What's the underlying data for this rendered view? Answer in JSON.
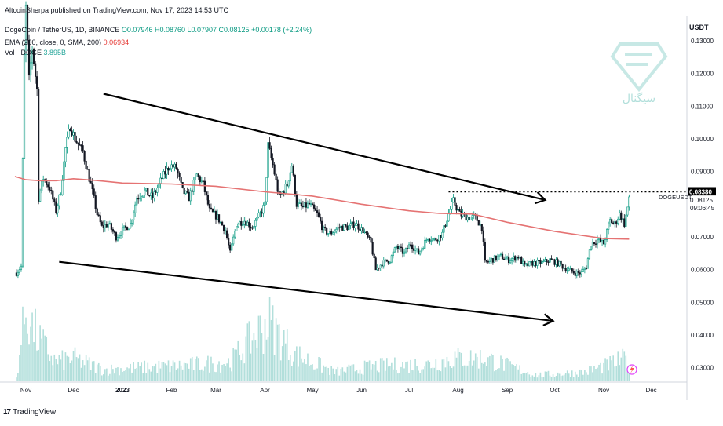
{
  "header": {
    "credit": "AltcoinSherpa published on TradingView.com, Nov 17, 2023 14:53 UTC",
    "symbol_label": "DogeCoin / TetherUS, 1D, BINANCE",
    "ohlc": "O0.07946  H0.08760  L0.07907  C0.08125  +0.00178 (+2.24%)",
    "ema_label": "EMA (200, close, 0, SMA, 200)",
    "ema_value": "0.06934",
    "vol_label": "Vol · DOGE",
    "vol_value": "3.895B"
  },
  "price_axis": {
    "unit": "USDT",
    "ticks": [
      "0.13000",
      "0.12000",
      "0.11000",
      "0.10000",
      "0.09000",
      "0.08000",
      "0.07000",
      "0.06000",
      "0.05000",
      "0.04000",
      "0.03000"
    ],
    "resistance_label": "0.08380",
    "last_price_label": "0.08125",
    "symbol_tag": "DOGEUSDT",
    "countdown": "09:06:45"
  },
  "time_axis": {
    "ticks": [
      "Nov",
      "Dec",
      "2023",
      "Feb",
      "Mar",
      "Apr",
      "May",
      "Jun",
      "Jul",
      "Aug",
      "Sep",
      "Oct",
      "Nov",
      "Dec"
    ]
  },
  "footer": {
    "brand": "TradingView"
  },
  "watermark": {
    "text": "سیگنال"
  },
  "colors": {
    "up": "#089981",
    "down": "#131722",
    "ema": "#e57373",
    "volume": "#b2dfdb",
    "trendline": "#000000",
    "text": "#131722"
  },
  "chart_data": {
    "type": "candlestick",
    "title": "DogeCoin / TetherUS, 1D, BINANCE",
    "x_range": [
      "2022-11-01",
      "2023-12-15"
    ],
    "ylim": [
      0.025,
      0.14
    ],
    "grid": false,
    "price_path": [
      [
        "2022-10-26",
        0.059
      ],
      [
        "2022-10-29",
        0.061
      ],
      [
        "2022-10-31",
        0.125
      ],
      [
        "2022-11-01",
        0.14
      ],
      [
        "2022-11-03",
        0.118
      ],
      [
        "2022-11-05",
        0.128
      ],
      [
        "2022-11-08",
        0.115
      ],
      [
        "2022-11-09",
        0.082
      ],
      [
        "2022-11-12",
        0.088
      ],
      [
        "2022-11-16",
        0.085
      ],
      [
        "2022-11-20",
        0.078
      ],
      [
        "2022-11-23",
        0.084
      ],
      [
        "2022-11-26",
        0.097
      ],
      [
        "2022-11-29",
        0.104
      ],
      [
        "2022-12-02",
        0.1
      ],
      [
        "2022-12-07",
        0.096
      ],
      [
        "2022-12-12",
        0.086
      ],
      [
        "2022-12-16",
        0.077
      ],
      [
        "2022-12-19",
        0.073
      ],
      [
        "2022-12-23",
        0.074
      ],
      [
        "2022-12-28",
        0.07
      ],
      [
        "2023-01-01",
        0.072
      ],
      [
        "2023-01-06",
        0.074
      ],
      [
        "2023-01-10",
        0.082
      ],
      [
        "2023-01-15",
        0.084
      ],
      [
        "2023-01-20",
        0.082
      ],
      [
        "2023-01-26",
        0.088
      ],
      [
        "2023-01-31",
        0.092
      ],
      [
        "2023-02-04",
        0.091
      ],
      [
        "2023-02-08",
        0.084
      ],
      [
        "2023-02-12",
        0.082
      ],
      [
        "2023-02-17",
        0.089
      ],
      [
        "2023-02-21",
        0.086
      ],
      [
        "2023-02-25",
        0.078
      ],
      [
        "2023-03-02",
        0.076
      ],
      [
        "2023-03-07",
        0.072
      ],
      [
        "2023-03-10",
        0.065
      ],
      [
        "2023-03-14",
        0.074
      ],
      [
        "2023-03-19",
        0.075
      ],
      [
        "2023-03-24",
        0.073
      ],
      [
        "2023-03-29",
        0.077
      ],
      [
        "2023-04-01",
        0.08
      ],
      [
        "2023-04-03",
        0.098
      ],
      [
        "2023-04-06",
        0.092
      ],
      [
        "2023-04-10",
        0.082
      ],
      [
        "2023-04-15",
        0.086
      ],
      [
        "2023-04-18",
        0.092
      ],
      [
        "2023-04-21",
        0.08
      ],
      [
        "2023-04-25",
        0.079
      ],
      [
        "2023-04-29",
        0.08
      ],
      [
        "2023-05-04",
        0.077
      ],
      [
        "2023-05-08",
        0.072
      ],
      [
        "2023-05-12",
        0.071
      ],
      [
        "2023-05-18",
        0.073
      ],
      [
        "2023-05-23",
        0.073
      ],
      [
        "2023-05-28",
        0.074
      ],
      [
        "2023-06-02",
        0.072
      ],
      [
        "2023-06-07",
        0.068
      ],
      [
        "2023-06-10",
        0.06
      ],
      [
        "2023-06-14",
        0.062
      ],
      [
        "2023-06-19",
        0.063
      ],
      [
        "2023-06-23",
        0.067
      ],
      [
        "2023-06-28",
        0.065
      ],
      [
        "2023-07-02",
        0.068
      ],
      [
        "2023-07-07",
        0.065
      ],
      [
        "2023-07-13",
        0.07
      ],
      [
        "2023-07-17",
        0.069
      ],
      [
        "2023-07-22",
        0.071
      ],
      [
        "2023-07-26",
        0.077
      ],
      [
        "2023-07-29",
        0.081
      ],
      [
        "2023-08-02",
        0.077
      ],
      [
        "2023-08-07",
        0.076
      ],
      [
        "2023-08-12",
        0.076
      ],
      [
        "2023-08-16",
        0.073
      ],
      [
        "2023-08-18",
        0.062
      ],
      [
        "2023-08-22",
        0.063
      ],
      [
        "2023-08-28",
        0.064
      ],
      [
        "2023-09-02",
        0.063
      ],
      [
        "2023-09-08",
        0.064
      ],
      [
        "2023-09-12",
        0.061
      ],
      [
        "2023-09-17",
        0.062
      ],
      [
        "2023-09-23",
        0.062
      ],
      [
        "2023-09-28",
        0.063
      ],
      [
        "2023-10-03",
        0.062
      ],
      [
        "2023-10-09",
        0.06
      ],
      [
        "2023-10-14",
        0.059
      ],
      [
        "2023-10-18",
        0.059
      ],
      [
        "2023-10-21",
        0.061
      ],
      [
        "2023-10-24",
        0.068
      ],
      [
        "2023-10-28",
        0.069
      ],
      [
        "2023-11-01",
        0.068
      ],
      [
        "2023-11-05",
        0.075
      ],
      [
        "2023-11-08",
        0.074
      ],
      [
        "2023-11-11",
        0.077
      ],
      [
        "2023-11-14",
        0.074
      ],
      [
        "2023-11-16",
        0.079
      ],
      [
        "2023-11-17",
        0.08125
      ]
    ],
    "ema200_path": [
      [
        "2022-10-25",
        0.0885
      ],
      [
        "2022-11-01",
        0.0875
      ],
      [
        "2022-11-10",
        0.0872
      ],
      [
        "2022-11-20",
        0.0872
      ],
      [
        "2022-12-01",
        0.0878
      ],
      [
        "2022-12-15",
        0.0873
      ],
      [
        "2023-01-01",
        0.0865
      ],
      [
        "2023-02-01",
        0.0862
      ],
      [
        "2023-03-01",
        0.0855
      ],
      [
        "2023-04-01",
        0.0838
      ],
      [
        "2023-05-01",
        0.0825
      ],
      [
        "2023-06-01",
        0.08
      ],
      [
        "2023-07-01",
        0.078
      ],
      [
        "2023-07-20",
        0.0772
      ],
      [
        "2023-08-10",
        0.077
      ],
      [
        "2023-09-01",
        0.0745
      ],
      [
        "2023-10-01",
        0.0717
      ],
      [
        "2023-11-01",
        0.0695
      ],
      [
        "2023-11-17",
        0.06934
      ]
    ],
    "volume_profile_relative": [
      [
        "2022-10-26",
        0.05
      ],
      [
        "2022-11-01",
        0.95
      ],
      [
        "2022-11-05",
        0.7
      ],
      [
        "2022-11-09",
        0.55
      ],
      [
        "2022-11-20",
        0.25
      ],
      [
        "2022-12-01",
        0.3
      ],
      [
        "2022-12-20",
        0.15
      ],
      [
        "2023-01-15",
        0.18
      ],
      [
        "2023-02-05",
        0.2
      ],
      [
        "2023-03-10",
        0.25
      ],
      [
        "2023-04-03",
        0.78
      ],
      [
        "2023-04-20",
        0.35
      ],
      [
        "2023-05-15",
        0.12
      ],
      [
        "2023-06-10",
        0.2
      ],
      [
        "2023-07-13",
        0.22
      ],
      [
        "2023-07-29",
        0.3
      ],
      [
        "2023-08-18",
        0.3
      ],
      [
        "2023-09-20",
        0.08
      ],
      [
        "2023-10-20",
        0.12
      ],
      [
        "2023-11-05",
        0.22
      ],
      [
        "2023-11-16",
        0.3
      ]
    ],
    "annotations": {
      "resistance_level": 0.0838,
      "upper_trendline": [
        [
          "2022-12-20",
          0.1138
        ],
        [
          "2023-09-25",
          0.0813
        ]
      ],
      "lower_trendline": [
        [
          "2022-11-22",
          0.0624
        ],
        [
          "2023-09-30",
          0.0443
        ]
      ]
    }
  }
}
